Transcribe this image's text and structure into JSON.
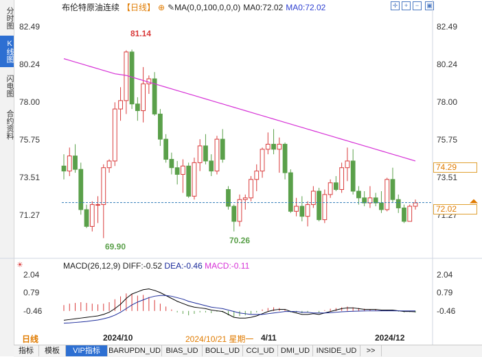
{
  "left_tabs": [
    {
      "label": "分时图",
      "active": false
    },
    {
      "label": "K线图",
      "active": true
    },
    {
      "label": "闪电图",
      "active": false
    },
    {
      "label": "合约资料",
      "active": false
    }
  ],
  "title": {
    "name": "布伦特原油连续",
    "period": "【日线】",
    "ma_params": "MA(0,0,100,0,0,0)",
    "ma0_label": "MA0:72.02",
    "ma0_label2": "MA0:72.02"
  },
  "price_axis": {
    "ticks": [
      "82.49",
      "80.24",
      "78.00",
      "75.75",
      "73.51",
      "71.27"
    ],
    "right_ticks": [
      "82.49",
      "80.24",
      "78.00",
      "75.75",
      "73.51",
      "71.27"
    ],
    "ymin": 68.9,
    "ymax": 83.2
  },
  "price_tags": {
    "upper": "74.29",
    "current": "72.02"
  },
  "annotations": {
    "high": "81.14",
    "low": "69.90",
    "low2": "70.26"
  },
  "macd": {
    "label": "MACD(26,12,9)",
    "diff": "DIFF:-0.52",
    "dea": "DEA:-0.46",
    "macd": "MACD:-0.11",
    "ticks": [
      "2.04",
      "0.79",
      "-0.46"
    ],
    "right_ticks": [
      "2.04",
      "0.79",
      "-0.46"
    ]
  },
  "time_axis": {
    "period": "日线",
    "labels": [
      "2024/10",
      "2024/10/21 星期一",
      "4/11",
      "2024/12"
    ]
  },
  "bottom_tabs": [
    "指标",
    "模板",
    "VIP指标",
    "BARUPDN_UD",
    "BIAS_UD",
    "BOLL_UD",
    "CCI_UD",
    "DMI_UD",
    "INSIDE_UD",
    ">>"
  ],
  "colors": {
    "up": "#d93a3a",
    "down": "#5aa04a",
    "ma": "#d630d6",
    "accent": "#2d6fd2",
    "diff": "#000000",
    "dea": "#1a2a9a",
    "macd_label": "#d630d6"
  },
  "chart_data": {
    "type": "candlestick",
    "title": "布伦特原油连续",
    "candles": [
      {
        "o": 74.2,
        "h": 74.9,
        "l": 73.4,
        "c": 73.9
      },
      {
        "o": 73.9,
        "h": 75.3,
        "l": 73.6,
        "c": 74.8
      },
      {
        "o": 74.8,
        "h": 75.5,
        "l": 73.8,
        "c": 74.0
      },
      {
        "o": 74.0,
        "h": 74.4,
        "l": 71.3,
        "c": 71.6
      },
      {
        "o": 71.6,
        "h": 71.9,
        "l": 70.5,
        "c": 70.6
      },
      {
        "o": 70.6,
        "h": 72.1,
        "l": 70.3,
        "c": 71.9
      },
      {
        "o": 71.9,
        "h": 72.4,
        "l": 70.8,
        "c": 71.9
      },
      {
        "o": 71.9,
        "h": 74.3,
        "l": 69.9,
        "c": 74.1
      },
      {
        "o": 74.1,
        "h": 74.6,
        "l": 73.8,
        "c": 74.5
      },
      {
        "o": 74.5,
        "h": 78.0,
        "l": 74.2,
        "c": 77.6
      },
      {
        "o": 77.6,
        "h": 78.9,
        "l": 76.9,
        "c": 78.1
      },
      {
        "o": 78.1,
        "h": 81.1,
        "l": 77.3,
        "c": 81.0
      },
      {
        "o": 81.0,
        "h": 81.14,
        "l": 77.6,
        "c": 77.9
      },
      {
        "o": 77.9,
        "h": 78.3,
        "l": 76.9,
        "c": 77.5
      },
      {
        "o": 77.5,
        "h": 80.1,
        "l": 76.8,
        "c": 79.1
      },
      {
        "o": 79.1,
        "h": 79.6,
        "l": 78.5,
        "c": 79.4
      },
      {
        "o": 79.4,
        "h": 79.8,
        "l": 77.2,
        "c": 77.3
      },
      {
        "o": 77.3,
        "h": 77.6,
        "l": 75.4,
        "c": 75.8
      },
      {
        "o": 75.8,
        "h": 76.1,
        "l": 74.4,
        "c": 74.6
      },
      {
        "o": 74.6,
        "h": 75.0,
        "l": 73.7,
        "c": 74.1
      },
      {
        "o": 74.1,
        "h": 74.5,
        "l": 73.1,
        "c": 73.7
      },
      {
        "o": 73.7,
        "h": 74.6,
        "l": 72.6,
        "c": 74.2
      },
      {
        "o": 74.2,
        "h": 74.4,
        "l": 72.3,
        "c": 72.4
      },
      {
        "o": 72.4,
        "h": 74.7,
        "l": 72.2,
        "c": 74.4
      },
      {
        "o": 74.4,
        "h": 75.8,
        "l": 73.9,
        "c": 75.4
      },
      {
        "o": 75.4,
        "h": 76.1,
        "l": 74.3,
        "c": 74.5
      },
      {
        "o": 74.5,
        "h": 74.9,
        "l": 73.6,
        "c": 73.9
      },
      {
        "o": 73.9,
        "h": 76.0,
        "l": 73.7,
        "c": 75.8
      },
      {
        "o": 75.8,
        "h": 76.4,
        "l": 74.4,
        "c": 74.6
      },
      {
        "o": 72.8,
        "h": 73.0,
        "l": 71.6,
        "c": 71.8
      },
      {
        "o": 71.8,
        "h": 71.9,
        "l": 70.3,
        "c": 70.9
      },
      {
        "o": 70.9,
        "h": 72.5,
        "l": 70.6,
        "c": 72.2
      },
      {
        "o": 72.2,
        "h": 72.5,
        "l": 71.6,
        "c": 72.3
      },
      {
        "o": 72.3,
        "h": 73.6,
        "l": 72.1,
        "c": 73.4
      },
      {
        "o": 73.4,
        "h": 74.3,
        "l": 72.7,
        "c": 73.9
      },
      {
        "o": 73.9,
        "h": 75.3,
        "l": 73.5,
        "c": 75.2
      },
      {
        "o": 75.2,
        "h": 76.2,
        "l": 74.9,
        "c": 75.5
      },
      {
        "o": 75.5,
        "h": 76.4,
        "l": 74.9,
        "c": 75.2
      },
      {
        "o": 75.2,
        "h": 75.9,
        "l": 73.8,
        "c": 75.5
      },
      {
        "o": 75.5,
        "h": 75.6,
        "l": 73.4,
        "c": 73.8
      },
      {
        "o": 73.8,
        "h": 74.0,
        "l": 71.4,
        "c": 71.5
      },
      {
        "o": 71.5,
        "h": 72.3,
        "l": 71.2,
        "c": 71.8
      },
      {
        "o": 71.8,
        "h": 72.4,
        "l": 70.9,
        "c": 71.2
      },
      {
        "o": 71.2,
        "h": 72.1,
        "l": 70.6,
        "c": 71.9
      },
      {
        "o": 71.9,
        "h": 73.0,
        "l": 71.7,
        "c": 72.7
      },
      {
        "o": 72.7,
        "h": 72.9,
        "l": 70.9,
        "c": 71.0
      },
      {
        "o": 71.0,
        "h": 72.8,
        "l": 70.8,
        "c": 72.5
      },
      {
        "o": 72.5,
        "h": 73.4,
        "l": 72.3,
        "c": 73.2
      },
      {
        "o": 73.2,
        "h": 73.6,
        "l": 72.7,
        "c": 72.8
      },
      {
        "o": 72.8,
        "h": 74.4,
        "l": 72.6,
        "c": 74.1
      },
      {
        "o": 74.1,
        "h": 75.3,
        "l": 73.3,
        "c": 74.5
      },
      {
        "o": 74.5,
        "h": 75.2,
        "l": 72.5,
        "c": 72.7
      },
      {
        "o": 72.7,
        "h": 73.0,
        "l": 71.9,
        "c": 72.3
      },
      {
        "o": 72.3,
        "h": 72.7,
        "l": 71.8,
        "c": 72.0
      },
      {
        "o": 72.0,
        "h": 73.0,
        "l": 71.7,
        "c": 72.3
      },
      {
        "o": 72.3,
        "h": 72.6,
        "l": 71.8,
        "c": 72.0
      },
      {
        "o": 72.0,
        "h": 72.7,
        "l": 71.4,
        "c": 71.6
      },
      {
        "o": 71.6,
        "h": 73.5,
        "l": 71.5,
        "c": 73.4
      },
      {
        "o": 73.4,
        "h": 74.1,
        "l": 72.0,
        "c": 72.2
      },
      {
        "o": 72.2,
        "h": 72.5,
        "l": 71.4,
        "c": 71.7
      },
      {
        "o": 71.7,
        "h": 71.9,
        "l": 70.8,
        "c": 70.9
      },
      {
        "o": 70.9,
        "h": 71.9,
        "l": 70.9,
        "c": 71.8
      },
      {
        "o": 71.8,
        "h": 72.2,
        "l": 71.6,
        "c": 72.0
      }
    ],
    "ma_line": [
      80.6,
      80.5,
      80.4,
      80.3,
      80.2,
      80.1,
      80.0,
      79.9,
      79.8,
      79.7,
      79.65,
      79.6,
      79.5,
      79.4,
      79.3,
      79.2,
      79.1,
      79.0,
      78.9,
      78.8,
      78.7,
      78.6,
      78.5,
      78.4,
      78.3,
      78.2,
      78.1,
      78.0,
      77.9,
      77.8,
      77.7,
      77.6,
      77.5,
      77.4,
      77.3,
      77.2,
      77.1,
      77.0,
      76.9,
      76.8,
      76.7,
      76.6,
      76.5,
      76.4,
      76.3,
      76.2,
      76.1,
      76.0,
      75.9,
      75.8,
      75.7,
      75.6,
      75.5,
      75.4,
      75.3,
      75.2,
      75.1,
      75.0,
      74.9,
      74.8,
      74.7,
      74.6,
      74.5
    ],
    "macd_hist": [
      0.4,
      0.5,
      0.55,
      0.6,
      0.55,
      0.5,
      0.45,
      0.5,
      0.6,
      0.8,
      1.0,
      1.2,
      1.15,
      1.05,
      1.1,
      0.95,
      0.75,
      0.5,
      0.3,
      0.1,
      -0.1,
      -0.2,
      -0.3,
      -0.2,
      -0.1,
      -0.1,
      -0.15,
      -0.05,
      -0.1,
      -0.3,
      -0.4,
      -0.35,
      -0.3,
      -0.2,
      -0.1,
      0.1,
      0.2,
      0.25,
      0.2,
      0.1,
      -0.1,
      -0.1,
      -0.15,
      -0.1,
      0.0,
      -0.1,
      0.05,
      0.15,
      0.2,
      0.25,
      0.3,
      0.25,
      0.2,
      0.15,
      0.1,
      0.1,
      0.05,
      0.05,
      0.0,
      -0.05,
      -0.1,
      -0.08,
      -0.11
    ],
    "diff_line": [
      -1.1,
      -1.05,
      -1.0,
      -0.95,
      -0.9,
      -0.85,
      -0.8,
      -0.7,
      -0.55,
      -0.3,
      0.0,
      0.4,
      0.7,
      0.85,
      1.0,
      1.05,
      0.95,
      0.8,
      0.6,
      0.4,
      0.2,
      0.05,
      -0.1,
      -0.2,
      -0.25,
      -0.3,
      -0.4,
      -0.45,
      -0.5,
      -0.7,
      -0.9,
      -0.95,
      -0.95,
      -0.9,
      -0.8,
      -0.65,
      -0.5,
      -0.4,
      -0.35,
      -0.35,
      -0.5,
      -0.6,
      -0.7,
      -0.7,
      -0.65,
      -0.7,
      -0.6,
      -0.5,
      -0.4,
      -0.3,
      -0.25,
      -0.25,
      -0.3,
      -0.35,
      -0.35,
      -0.35,
      -0.4,
      -0.4,
      -0.4,
      -0.45,
      -0.5,
      -0.5,
      -0.52
    ],
    "dea_line": [
      -1.3,
      -1.28,
      -1.25,
      -1.22,
      -1.18,
      -1.13,
      -1.08,
      -1.0,
      -0.9,
      -0.75,
      -0.55,
      -0.3,
      -0.05,
      0.15,
      0.3,
      0.45,
      0.55,
      0.6,
      0.6,
      0.55,
      0.45,
      0.35,
      0.2,
      0.1,
      0.0,
      -0.1,
      -0.2,
      -0.25,
      -0.3,
      -0.4,
      -0.5,
      -0.6,
      -0.65,
      -0.7,
      -0.7,
      -0.7,
      -0.65,
      -0.6,
      -0.55,
      -0.5,
      -0.5,
      -0.5,
      -0.55,
      -0.55,
      -0.6,
      -0.6,
      -0.6,
      -0.58,
      -0.55,
      -0.52,
      -0.5,
      -0.48,
      -0.47,
      -0.46,
      -0.45,
      -0.45,
      -0.45,
      -0.45,
      -0.45,
      -0.45,
      -0.46,
      -0.46,
      -0.46
    ],
    "macd_range": [
      -1.6,
      2.4
    ]
  }
}
